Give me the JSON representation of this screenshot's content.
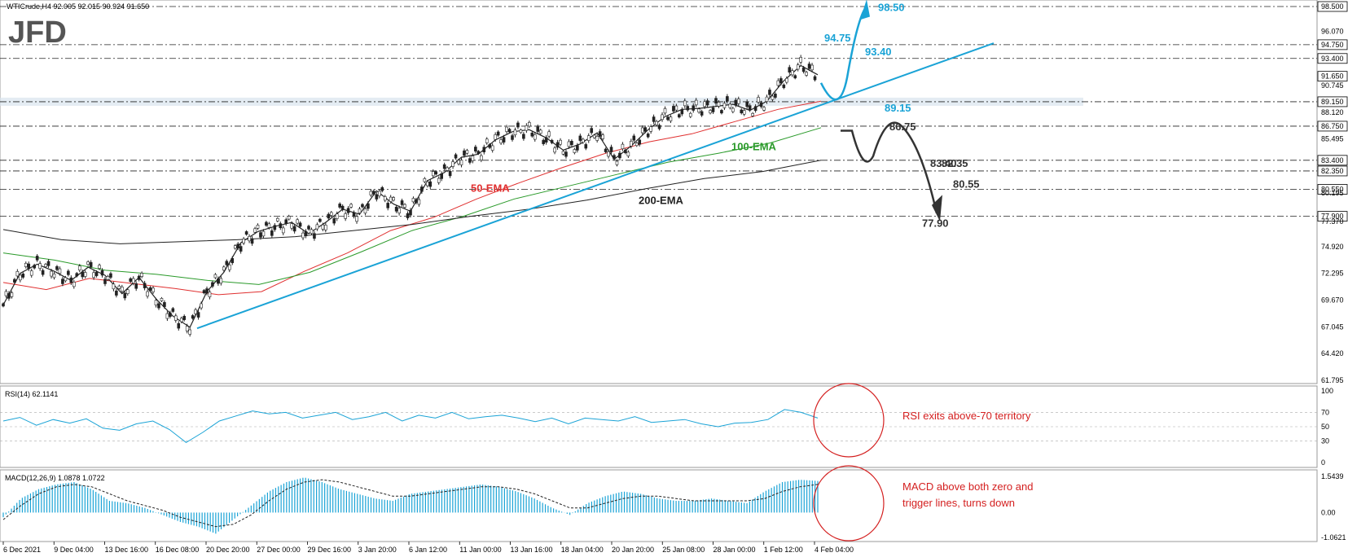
{
  "header": {
    "symbol_line": "WTICrude,H4  92.005 92.015 90.924 91.650",
    "logo": "JFD"
  },
  "colors": {
    "blue": "#1aa3d6",
    "dark": "#333333",
    "red_ema": "#e03030",
    "green_ema": "#2a9a2a",
    "black_ema": "#222222",
    "annotation": "#d42020",
    "zone": "#d8e4ee"
  },
  "chart_data": [
    {
      "type": "line",
      "title": "",
      "ylim": [
        61.795,
        98.5
      ],
      "y_ticks": [
        "98.500",
        "96.070",
        "94.750",
        "93.400",
        "91.650",
        "90.745",
        "89.150",
        "88.120",
        "86.750",
        "85.495",
        "83.400",
        "82.350",
        "80.550",
        "80.195",
        "77.900",
        "77.370",
        "74.920",
        "72.295",
        "69.670",
        "67.045",
        "64.420",
        "61.795"
      ],
      "x_tick_labels": [
        "6 Dec 2021",
        "9 Dec 04:00",
        "13 Dec 16:00",
        "16 Dec 08:00",
        "20 Dec 20:00",
        "27 Dec 00:00",
        "29 Dec 16:00",
        "3 Jan 20:00",
        "6 Jan 12:00",
        "11 Jan 00:00",
        "13 Jan 16:00",
        "18 Jan 04:00",
        "20 Jan 20:00",
        "25 Jan 08:00",
        "28 Jan 00:00",
        "1 Feb 12:00",
        "4 Feb 04:00"
      ],
      "price_path": [
        69.2,
        72.3,
        73.2,
        72.5,
        71.6,
        72.9,
        72.1,
        70.3,
        71.9,
        69.8,
        68.1,
        67.0,
        70.5,
        72.4,
        75.3,
        76.4,
        76.9,
        77.3,
        76.2,
        77.3,
        78.6,
        78.1,
        80.4,
        79.1,
        78.4,
        81.4,
        82.2,
        83.7,
        84.0,
        85.4,
        86.2,
        86.4,
        85.6,
        84.4,
        85.0,
        86.1,
        83.5,
        84.8,
        86.4,
        87.7,
        88.4,
        88.5,
        88.7,
        88.9,
        88.3,
        89.2,
        91.2,
        92.7,
        91.8
      ],
      "horizontal_levels": [
        {
          "label": "98.50",
          "value": 98.5
        },
        {
          "label": "94.75",
          "value": 94.75
        },
        {
          "label": "93.40",
          "value": 93.4
        },
        {
          "label": "89.15",
          "value": 89.15
        },
        {
          "label": "86.75",
          "value": 86.75
        },
        {
          "label": "83.40",
          "value": 83.4
        },
        {
          "label": "82.35",
          "value": 82.35
        },
        {
          "label": "80.55",
          "value": 80.55
        },
        {
          "label": "77.90",
          "value": 77.9
        }
      ],
      "current_price": "91.650",
      "series": [
        {
          "name": "50-EMA",
          "values": [
            71.4,
            70.7,
            71.8,
            71.3,
            70.8,
            70.2,
            70.5,
            72.5,
            74.3,
            76.5,
            77.8,
            79.6,
            81.2,
            82.7,
            84.1,
            85.2,
            86.0,
            87.2,
            88.4,
            89.2
          ]
        },
        {
          "name": "100-EMA",
          "values": [
            74.3,
            73.6,
            72.6,
            72.2,
            71.6,
            71.2,
            72.4,
            74.4,
            76.5,
            77.9,
            79.6,
            80.8,
            82.0,
            83.2,
            84.1,
            85.1,
            86.6
          ]
        },
        {
          "name": "200-EMA",
          "values": [
            76.6,
            75.6,
            75.2,
            75.4,
            75.6,
            75.9,
            76.5,
            77.1,
            77.9,
            78.6,
            79.5,
            80.6,
            81.6,
            82.3,
            83.4
          ]
        }
      ],
      "trendline": {
        "from": [
          "20 Dec 2021",
          66.9
        ],
        "to": [
          "7 Feb 2022",
          94.9
        ]
      },
      "scenario_labels": {
        "up": [
          "94.75",
          "93.40",
          "89.15",
          "98.50"
        ],
        "down": [
          "86.75",
          "83.40",
          "82.35",
          "80.55",
          "77.90"
        ]
      }
    },
    {
      "type": "line",
      "title": "RSI(14) 62.1141",
      "ylim": [
        0,
        100
      ],
      "y_ticks": [
        "100",
        "70",
        "50",
        "30",
        "0"
      ],
      "values": [
        58,
        63,
        52,
        60,
        55,
        61,
        48,
        45,
        54,
        58,
        46,
        28,
        42,
        58,
        65,
        72,
        68,
        70,
        62,
        66,
        70,
        60,
        64,
        70,
        58,
        66,
        62,
        70,
        61,
        64,
        66,
        62,
        57,
        62,
        54,
        62,
        60,
        58,
        64,
        56,
        58,
        60,
        54,
        50,
        55,
        56,
        60,
        74,
        70,
        62
      ],
      "annotation": "RSI exits above-70 territory"
    },
    {
      "type": "bar",
      "title": "MACD(12,26,9) 1.0878 1.0722",
      "ylim": [
        -1.0621,
        1.5439
      ],
      "y_ticks": [
        "1.5439",
        "0.00",
        "-1.0621"
      ],
      "histogram": [
        -0.2,
        0.6,
        1.0,
        1.2,
        1.3,
        1.0,
        0.5,
        0.4,
        0.2,
        -0.1,
        -0.4,
        -0.6,
        -0.9,
        -0.3,
        0.3,
        0.9,
        1.3,
        1.5,
        1.3,
        1.0,
        0.8,
        0.6,
        0.5,
        0.8,
        0.9,
        1.0,
        1.1,
        1.2,
        1.1,
        0.9,
        0.6,
        0.2,
        -0.1,
        0.4,
        0.7,
        0.9,
        0.8,
        0.6,
        0.5,
        0.5,
        0.6,
        0.5,
        0.4,
        0.9,
        1.3,
        1.4,
        1.35
      ],
      "signal": [
        -0.3,
        0.3,
        0.8,
        1.1,
        1.2,
        1.1,
        0.8,
        0.5,
        0.3,
        0.1,
        -0.2,
        -0.4,
        -0.6,
        -0.5,
        -0.1,
        0.5,
        1.0,
        1.3,
        1.4,
        1.3,
        1.1,
        0.9,
        0.7,
        0.7,
        0.8,
        0.9,
        1.0,
        1.1,
        1.1,
        1.0,
        0.8,
        0.5,
        0.2,
        0.2,
        0.4,
        0.6,
        0.7,
        0.7,
        0.6,
        0.5,
        0.5,
        0.5,
        0.5,
        0.6,
        0.9,
        1.1,
        1.2
      ],
      "annotation": "MACD above both zero and trigger lines, turns down"
    }
  ]
}
